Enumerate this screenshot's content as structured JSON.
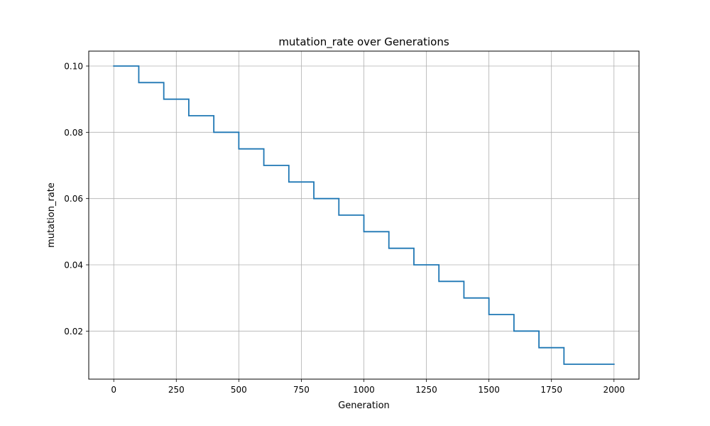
{
  "chart_data": {
    "type": "line",
    "title": "mutation_rate over Generations",
    "xlabel": "Generation",
    "ylabel": "mutation_rate",
    "xlim": [
      -100,
      2100
    ],
    "ylim": [
      0.0055,
      0.1045
    ],
    "xticks": [
      0,
      250,
      500,
      750,
      1000,
      1250,
      1500,
      1750,
      2000
    ],
    "xtick_labels": [
      "0",
      "250",
      "500",
      "750",
      "1000",
      "1250",
      "1500",
      "1750",
      "2000"
    ],
    "yticks": [
      0.02,
      0.04,
      0.06,
      0.08,
      0.1
    ],
    "ytick_labels": [
      "0.02",
      "0.04",
      "0.06",
      "0.08",
      "0.10"
    ],
    "grid": true,
    "series": [
      {
        "color": "#1f77b4",
        "step": "post",
        "x": [
          0,
          100,
          200,
          300,
          400,
          500,
          600,
          700,
          800,
          900,
          1000,
          1100,
          1200,
          1300,
          1400,
          1500,
          1600,
          1700,
          1800,
          2000
        ],
        "y": [
          0.1,
          0.095,
          0.09,
          0.085,
          0.08,
          0.075,
          0.07,
          0.065,
          0.06,
          0.055,
          0.05,
          0.045,
          0.04,
          0.035,
          0.03,
          0.025,
          0.02,
          0.015,
          0.01,
          0.01
        ]
      }
    ]
  }
}
